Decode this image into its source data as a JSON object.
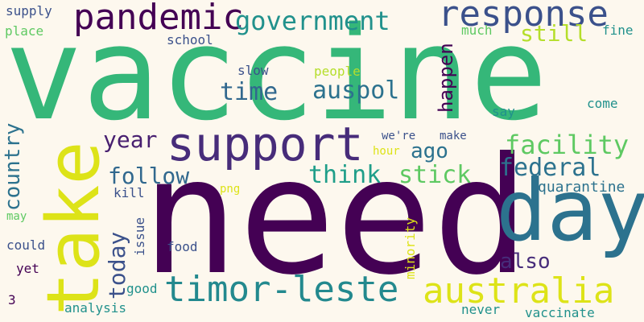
{
  "words": [
    {
      "id": "vaccine",
      "text": "vaccine",
      "color": "#35b779"
    },
    {
      "id": "need",
      "text": "need",
      "color": "#440154"
    },
    {
      "id": "take",
      "text": "take",
      "color": "#dde318"
    },
    {
      "id": "day",
      "text": "day",
      "color": "#2c728e"
    },
    {
      "id": "support",
      "text": "support",
      "color": "#472c7a"
    },
    {
      "id": "pandemic",
      "text": "pandemic",
      "color": "#440154"
    },
    {
      "id": "response",
      "text": "response",
      "color": "#3b518b"
    },
    {
      "id": "timor-leste",
      "text": "timor-leste",
      "color": "#23898e"
    },
    {
      "id": "australia",
      "text": "australia",
      "color": "#dde318"
    },
    {
      "id": "government",
      "text": "government",
      "color": "#21918c"
    },
    {
      "id": "facility",
      "text": "facility",
      "color": "#5ec962"
    },
    {
      "id": "federal",
      "text": "federal",
      "color": "#2c728e"
    },
    {
      "id": "think",
      "text": "think",
      "color": "#1f9e89"
    },
    {
      "id": "stick",
      "text": "stick",
      "color": "#5ec962"
    },
    {
      "id": "follow",
      "text": "follow",
      "color": "#31688e"
    },
    {
      "id": "auspol",
      "text": "auspol",
      "color": "#2c728e"
    },
    {
      "id": "time",
      "text": "time",
      "color": "#31688e"
    },
    {
      "id": "year",
      "text": "year",
      "color": "#481f70"
    },
    {
      "id": "ago",
      "text": "ago",
      "color": "#2c728e"
    },
    {
      "id": "also",
      "text": "also",
      "color": "#472c7a"
    },
    {
      "id": "today",
      "text": "today",
      "color": "#3b518b"
    },
    {
      "id": "country",
      "text": "country",
      "color": "#2c728e"
    },
    {
      "id": "happen",
      "text": "happen",
      "color": "#440154"
    },
    {
      "id": "still",
      "text": "still",
      "color": "#b5de2b"
    },
    {
      "id": "quarantine",
      "text": "quarantine",
      "color": "#2c728e"
    },
    {
      "id": "analysis",
      "text": "analysis",
      "color": "#21918c"
    },
    {
      "id": "vaccinate",
      "text": "vaccinate",
      "color": "#21918c"
    },
    {
      "id": "never",
      "text": "never",
      "color": "#21918c"
    },
    {
      "id": "good",
      "text": "good",
      "color": "#21918c"
    },
    {
      "id": "food",
      "text": "food",
      "color": "#3b518b"
    },
    {
      "id": "issue",
      "text": "issue",
      "color": "#3b518b"
    },
    {
      "id": "minority",
      "text": "minority",
      "color": "#dde318"
    },
    {
      "id": "png",
      "text": "png",
      "color": "#dde318"
    },
    {
      "id": "kill",
      "text": "kill",
      "color": "#3b518b"
    },
    {
      "id": "may",
      "text": "may",
      "color": "#5ec962"
    },
    {
      "id": "could",
      "text": "could",
      "color": "#3b518b"
    },
    {
      "id": "yet",
      "text": "yet",
      "color": "#440154"
    },
    {
      "id": "3",
      "text": "3",
      "color": "#440154"
    },
    {
      "id": "supply",
      "text": "supply",
      "color": "#3b518b"
    },
    {
      "id": "place",
      "text": "place",
      "color": "#5ec962"
    },
    {
      "id": "school",
      "text": "school",
      "color": "#3b518b"
    },
    {
      "id": "slow",
      "text": "slow",
      "color": "#3b518b"
    },
    {
      "id": "people",
      "text": "people",
      "color": "#b5de2b"
    },
    {
      "id": "much",
      "text": "much",
      "color": "#5ec962"
    },
    {
      "id": "fine",
      "text": "fine",
      "color": "#21918c"
    },
    {
      "id": "come",
      "text": "come",
      "color": "#21918c"
    },
    {
      "id": "say",
      "text": "say",
      "color": "#21918c"
    },
    {
      "id": "we-re",
      "text": "we're",
      "color": "#3b518b"
    },
    {
      "id": "make",
      "text": "make",
      "color": "#3b518b"
    },
    {
      "id": "hour",
      "text": "hour",
      "color": "#dde318"
    }
  ]
}
